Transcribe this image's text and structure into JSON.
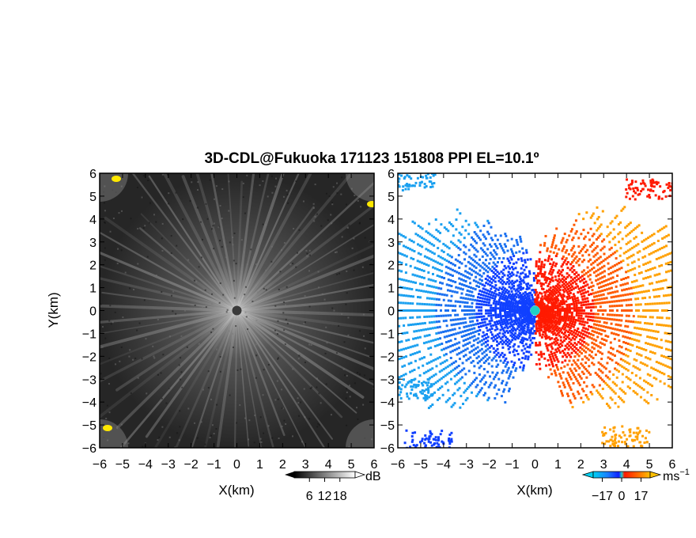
{
  "title": "3D-CDL@Fukuoka 171123 151808 PPI EL=10.1º",
  "colors": {
    "background": "#ffffff",
    "axis": "#000000",
    "echo_dark": "#2a2a2a",
    "echo_light": "#d8d8d8",
    "clutter": "#ffe800",
    "velocity_neg_far": "#1aa0f0",
    "velocity_neg_near": "#1040ff",
    "velocity_zero": "#20d0c8",
    "velocity_pos_near": "#ff1a00",
    "velocity_pos_far": "#ffa000"
  },
  "chart_data": [
    {
      "type": "heatmap",
      "quantity": "reflectivity",
      "title": "",
      "xlabel": "X(km)",
      "ylabel": "Y(km)",
      "xlim": [
        -6,
        6
      ],
      "ylim": [
        -6,
        6
      ],
      "xticks": [
        -6,
        -5,
        -4,
        -3,
        -2,
        -1,
        0,
        1,
        2,
        3,
        4,
        5,
        6
      ],
      "yticks": [
        -6,
        -5,
        -4,
        -3,
        -2,
        -1,
        0,
        1,
        2,
        3,
        4,
        5,
        6
      ],
      "xtick_labels": [
        "−6",
        "−5",
        "−4",
        "−3",
        "−2",
        "−1",
        "0",
        "1",
        "2",
        "3",
        "4",
        "5",
        "6"
      ],
      "ytick_labels": [
        "−6",
        "−5",
        "−4",
        "−3",
        "−2",
        "−1",
        "0",
        "1",
        "2",
        "3",
        "4",
        "5",
        "6"
      ],
      "grid": false,
      "colorbar": {
        "unit": "dB",
        "range": [
          0,
          24
        ],
        "ticks": [
          6,
          12,
          18
        ],
        "tick_labels": [
          "6",
          "12",
          "18"
        ],
        "colormap": "gray",
        "extend": "both"
      }
    },
    {
      "type": "heatmap",
      "quantity": "doppler_velocity",
      "title": "",
      "xlabel": "X(km)",
      "ylabel": "",
      "xlim": [
        -6,
        6
      ],
      "ylim": [
        -6,
        6
      ],
      "xticks": [
        -6,
        -5,
        -4,
        -3,
        -2,
        -1,
        0,
        1,
        2,
        3,
        4,
        5,
        6
      ],
      "yticks": [
        -6,
        -5,
        -4,
        -3,
        -2,
        -1,
        0,
        1,
        2,
        3,
        4,
        5,
        6
      ],
      "xtick_labels": [
        "−6",
        "−5",
        "−4",
        "−3",
        "−2",
        "−1",
        "0",
        "1",
        "2",
        "3",
        "4",
        "5",
        "6"
      ],
      "ytick_labels": [
        "−6",
        "−5",
        "−4",
        "−3",
        "−2",
        "−1",
        "0",
        "1",
        "2",
        "3",
        "4",
        "5",
        "6"
      ],
      "grid": false,
      "colorbar": {
        "unit": "ms",
        "unit_exponent": "−1",
        "range": [
          -25,
          25
        ],
        "ticks": [
          -17,
          0,
          17
        ],
        "tick_labels": [
          "−17",
          "0",
          "17"
        ],
        "colormap": "blue-cyan-red-orange",
        "extend": "both"
      }
    }
  ]
}
